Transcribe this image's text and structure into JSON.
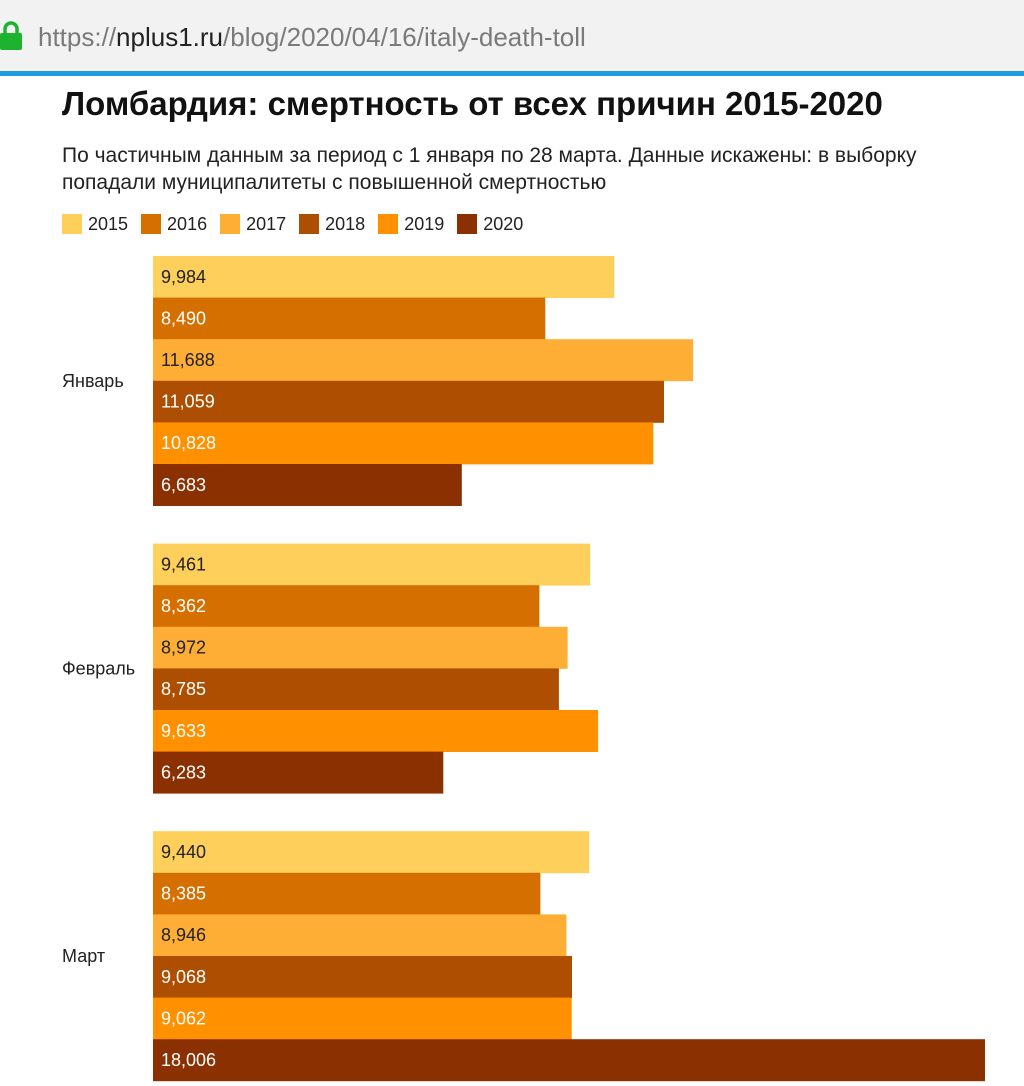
{
  "browser": {
    "url_scheme": "https://",
    "url_host": "nplus1.ru",
    "url_path": "/blog/2020/04/16/italy-death-toll",
    "lock_icon": "lock-icon",
    "lock_color": "#1db32e",
    "accent_color": "#1e9be0"
  },
  "chart_data": {
    "type": "bar",
    "orientation": "horizontal",
    "title": "Ломбардия: смертность от всех причин 2015-2020",
    "subtitle": "По частичным данным за период с 1 января по 28 марта. Данные искажены: в выборку попадали муниципалитеты с повышенной смертностью",
    "categories": [
      "Январь",
      "Февраль",
      "Март"
    ],
    "series": [
      {
        "name": "2015",
        "color": "#ffcf5c",
        "label_color": "#222222",
        "values": [
          9984,
          9461,
          9440
        ]
      },
      {
        "name": "2016",
        "color": "#d46f00",
        "label_color": "#ffffff",
        "values": [
          8490,
          8362,
          8385
        ]
      },
      {
        "name": "2017",
        "color": "#ffae35",
        "label_color": "#222222",
        "values": [
          11688,
          8972,
          8946
        ]
      },
      {
        "name": "2018",
        "color": "#ae4e00",
        "label_color": "#ffffff",
        "values": [
          11059,
          8785,
          9068
        ]
      },
      {
        "name": "2019",
        "color": "#ff9000",
        "label_color": "#ffffff",
        "values": [
          10828,
          9633,
          9062
        ]
      },
      {
        "name": "2020",
        "color": "#8b3000",
        "label_color": "#ffffff",
        "values": [
          6683,
          6283,
          18006
        ]
      }
    ],
    "data_labels": [
      [
        "9,984",
        "9,461",
        "9,440"
      ],
      [
        "8,490",
        "8,362",
        "8,385"
      ],
      [
        "11,688",
        "8,972",
        "8,946"
      ],
      [
        "11,059",
        "8,785",
        "9,068"
      ],
      [
        "10,828",
        "9,633",
        "9,062"
      ],
      [
        "6,683",
        "6,283",
        "18,006"
      ]
    ],
    "legend_position": "top-left",
    "grid": false,
    "xlim": [
      0,
      18006
    ]
  }
}
